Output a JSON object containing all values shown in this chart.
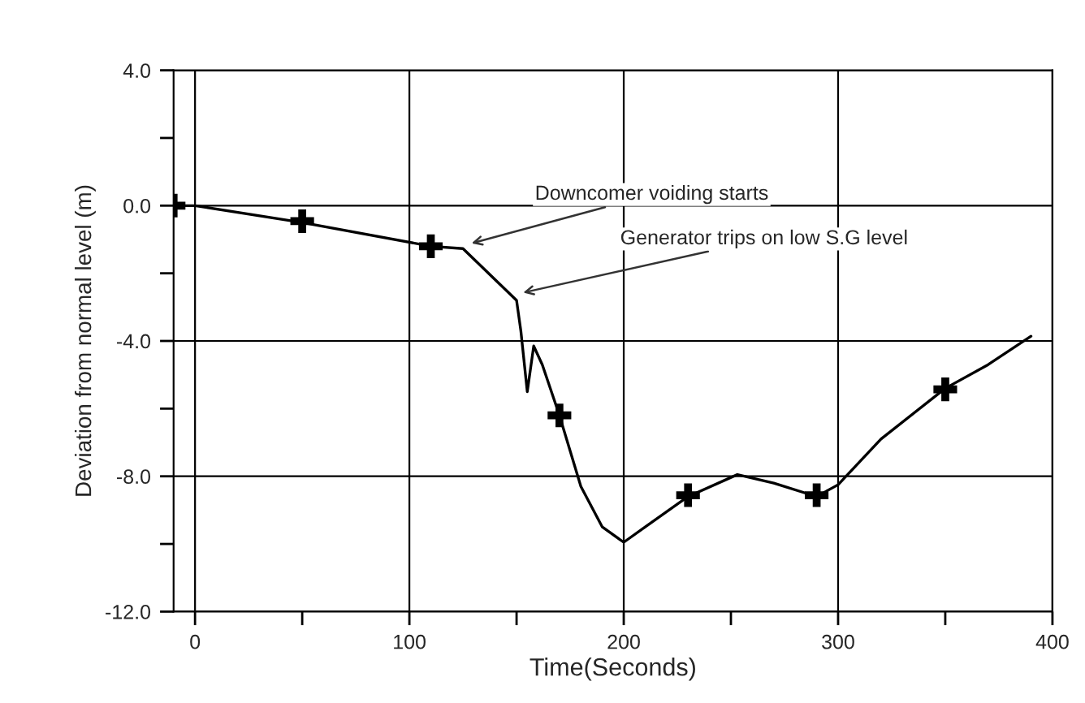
{
  "chart_data": {
    "type": "line",
    "xlabel": "Time(Seconds)",
    "ylabel": "Deviation from normal level (m)",
    "xlim": [
      -10,
      400
    ],
    "ylim": [
      -12,
      4
    ],
    "xticks": [
      0,
      {
        "value": 50,
        "label": null
      },
      100,
      {
        "value": 150,
        "label": null
      },
      200,
      {
        "value": 250,
        "label": null
      },
      300,
      {
        "value": 350,
        "label": null
      },
      400
    ],
    "yticks": [
      {
        "value": -12,
        "label": "-12.0"
      },
      {
        "value": -10,
        "label": null
      },
      {
        "value": -8,
        "label": "-8.0"
      },
      {
        "value": -6,
        "label": null
      },
      {
        "value": -4,
        "label": "-4.0"
      },
      {
        "value": -2,
        "label": null
      },
      {
        "value": 0,
        "label": "0.0"
      },
      {
        "value": 2,
        "label": null
      },
      {
        "value": 4,
        "label": "4.0"
      }
    ],
    "grid": true,
    "legend": false,
    "series": [
      {
        "color": "#000000",
        "marker": "none",
        "line_style": "solid",
        "x": [
          -10,
          0,
          50,
          110,
          125,
          150,
          152,
          155,
          158,
          162,
          170,
          180,
          190,
          200,
          210,
          230,
          253,
          270,
          290,
          300,
          320,
          350,
          370,
          390
        ],
        "values": [
          0,
          0,
          -0.5,
          -1.2,
          -1.27,
          -2.8,
          -3.7,
          -5.5,
          -4.15,
          -4.7,
          -6.2,
          -8.3,
          -9.5,
          -9.95,
          -9.5,
          -8.6,
          -7.95,
          -8.2,
          -8.6,
          -8.25,
          -6.9,
          -5.4,
          -4.7,
          -3.86
        ]
      },
      {
        "type": "scatter",
        "color": "#000000",
        "marker": "cross",
        "x": [
          -10,
          50,
          110,
          170,
          230,
          290,
          350
        ],
        "values": [
          0,
          -0.46,
          -1.2,
          -6.2,
          -8.56,
          -8.56,
          -5.43
        ]
      }
    ],
    "annotations": [
      {
        "text": "Downcomer voiding starts",
        "x": 127,
        "y": -1.15
      },
      {
        "text": "Generator trips on low S.G level",
        "x": 151,
        "y": -2.6
      }
    ]
  }
}
